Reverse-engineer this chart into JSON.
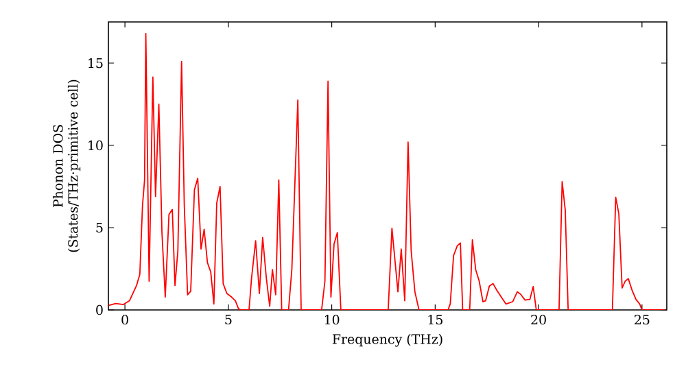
{
  "chart_data": {
    "type": "line",
    "xlabel": "Frequency (THz)",
    "ylabel": "Phonon DOS (States/THz·primitive cell)",
    "xlim": [
      -0.8,
      26.2
    ],
    "ylim": [
      0,
      17.5
    ],
    "xticks": [
      0,
      5,
      10,
      15,
      20,
      25
    ],
    "yticks": [
      0,
      5,
      10,
      15
    ],
    "grid": false,
    "marker": "none",
    "line_style": "solid",
    "series": [
      {
        "color": "#ff0000",
        "x": [
          -0.78,
          -0.45,
          -0.07,
          0.22,
          0.56,
          0.72,
          0.85,
          0.95,
          1.01,
          1.17,
          1.35,
          1.48,
          1.64,
          1.79,
          1.95,
          2.13,
          2.29,
          2.42,
          2.56,
          2.74,
          2.87,
          3.03,
          3.18,
          3.36,
          3.52,
          3.68,
          3.83,
          3.99,
          4.15,
          4.3,
          4.44,
          4.6,
          4.75,
          4.93,
          5.16,
          5.34,
          5.49,
          5.6,
          6.0,
          6.12,
          6.32,
          6.5,
          6.66,
          6.84,
          7.0,
          7.13,
          7.29,
          7.44,
          7.58,
          7.91,
          8.07,
          8.36,
          8.52,
          9.51,
          9.67,
          9.82,
          9.96,
          10.11,
          10.27,
          10.44,
          12.73,
          12.91,
          13.2,
          13.36,
          13.53,
          13.69,
          13.84,
          14.02,
          14.22,
          15.62,
          15.73,
          15.89,
          16.07,
          16.22,
          16.33,
          16.67,
          16.8,
          16.96,
          17.13,
          17.31,
          17.44,
          17.62,
          17.8,
          17.98,
          18.2,
          18.42,
          18.75,
          18.97,
          19.14,
          19.34,
          19.58,
          19.74,
          19.89,
          20.99,
          21.14,
          21.29,
          21.43,
          23.57,
          23.73,
          23.88,
          24.04,
          24.19,
          24.34,
          24.52,
          24.71,
          24.89,
          25.0,
          26.1
        ],
        "values": [
          0.28,
          0.39,
          0.33,
          0.56,
          1.48,
          2.17,
          6.35,
          7.9,
          16.8,
          1.75,
          14.15,
          6.9,
          12.5,
          4.7,
          0.78,
          5.8,
          6.1,
          1.48,
          3.6,
          15.1,
          6.35,
          0.92,
          1.14,
          7.3,
          8.0,
          3.7,
          4.9,
          2.87,
          2.3,
          0.36,
          6.5,
          7.5,
          1.6,
          1.0,
          0.78,
          0.56,
          0.08,
          0,
          0,
          1.9,
          4.2,
          1.0,
          4.4,
          1.9,
          0.22,
          2.45,
          0.92,
          7.9,
          0,
          0,
          2.45,
          12.75,
          0,
          0,
          1.75,
          13.9,
          0.78,
          4.0,
          4.7,
          0,
          0,
          4.96,
          1.1,
          3.7,
          0.56,
          10.2,
          3.6,
          1.1,
          0,
          0,
          0.36,
          3.3,
          3.9,
          4.07,
          0,
          0,
          4.26,
          2.45,
          1.75,
          0.5,
          0.56,
          1.45,
          1.6,
          1.2,
          0.78,
          0.36,
          0.5,
          1.1,
          0.95,
          0.6,
          0.64,
          1.42,
          0,
          0,
          7.8,
          6.07,
          0,
          0,
          6.85,
          5.85,
          1.34,
          1.75,
          1.9,
          1.2,
          0.64,
          0.36,
          0,
          0
        ]
      }
    ]
  }
}
